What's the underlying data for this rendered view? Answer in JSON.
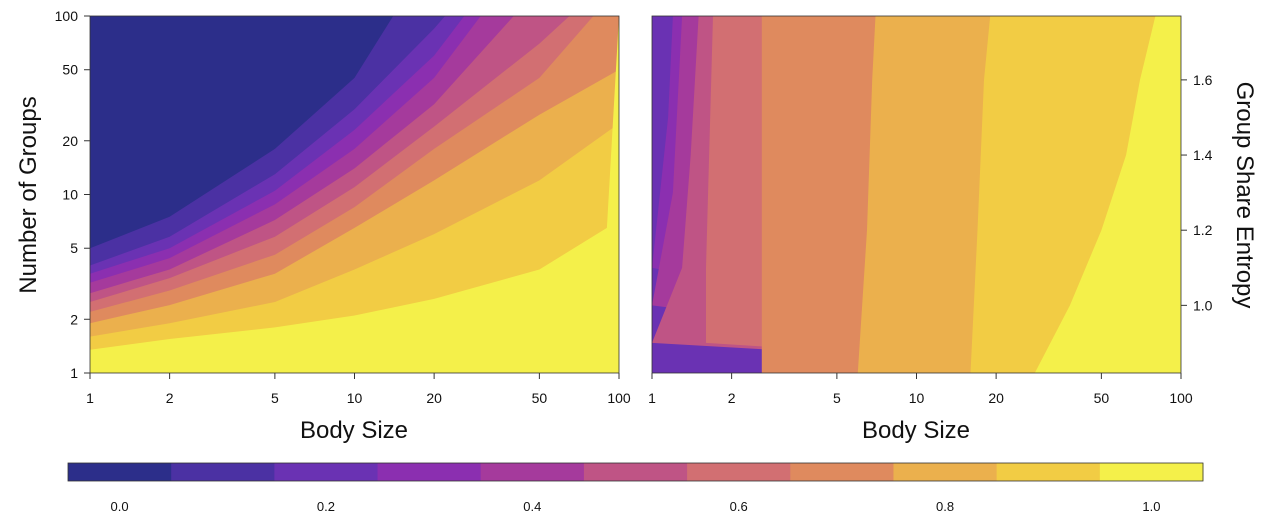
{
  "chart_data": [
    {
      "type": "heatmap",
      "title": "",
      "xlabel": "Body Size",
      "ylabel": "Number of Groups",
      "x_scale": "log",
      "y_scale": "log",
      "xlim": [
        1,
        100
      ],
      "ylim": [
        1,
        100
      ],
      "x_ticks": [
        1,
        2,
        5,
        10,
        20,
        50,
        100
      ],
      "y_ticks": [
        1,
        2,
        5,
        10,
        20,
        50,
        100
      ],
      "value_range": [
        0,
        1
      ],
      "contour_bands": [
        {
          "level": 1.0,
          "boundary": [
            [
              1,
              1.35
            ],
            [
              2,
              1.55
            ],
            [
              5,
              1.8
            ],
            [
              10,
              2.1
            ],
            [
              20,
              2.6
            ],
            [
              50,
              3.8
            ],
            [
              90,
              6.5
            ]
          ]
        },
        {
          "level": 0.9,
          "boundary": [
            [
              1,
              1.6
            ],
            [
              2,
              1.9
            ],
            [
              5,
              2.5
            ],
            [
              10,
              3.8
            ],
            [
              20,
              6.0
            ],
            [
              50,
              12
            ],
            [
              100,
              25
            ]
          ]
        },
        {
          "level": 0.8,
          "boundary": [
            [
              1,
              1.9
            ],
            [
              2,
              2.4
            ],
            [
              5,
              3.6
            ],
            [
              10,
              6.5
            ],
            [
              20,
              12
            ],
            [
              50,
              28
            ],
            [
              100,
              50
            ]
          ]
        },
        {
          "level": 0.7,
          "boundary": [
            [
              1,
              2.2
            ],
            [
              2,
              2.9
            ],
            [
              5,
              4.6
            ],
            [
              10,
              8.5
            ],
            [
              20,
              18
            ],
            [
              50,
              45
            ],
            [
              80,
              100
            ]
          ]
        },
        {
          "level": 0.6,
          "boundary": [
            [
              1,
              2.5
            ],
            [
              2,
              3.4
            ],
            [
              5,
              5.8
            ],
            [
              10,
              11
            ],
            [
              20,
              24
            ],
            [
              50,
              70
            ],
            [
              65,
              100
            ]
          ]
        },
        {
          "level": 0.5,
          "boundary": [
            [
              1,
              2.8
            ],
            [
              2,
              3.8
            ],
            [
              5,
              7.2
            ],
            [
              10,
              14
            ],
            [
              20,
              32
            ],
            [
              40,
              100
            ]
          ]
        },
        {
          "level": 0.4,
          "boundary": [
            [
              1,
              3.2
            ],
            [
              2,
              4.4
            ],
            [
              5,
              8.8
            ],
            [
              10,
              18
            ],
            [
              20,
              45
            ],
            [
              30,
              100
            ]
          ]
        },
        {
          "level": 0.3,
          "boundary": [
            [
              1,
              3.6
            ],
            [
              2,
              5.0
            ],
            [
              5,
              10.5
            ],
            [
              10,
              23
            ],
            [
              20,
              60
            ],
            [
              26,
              100
            ]
          ]
        },
        {
          "level": 0.2,
          "boundary": [
            [
              1,
              4.0
            ],
            [
              2,
              5.8
            ],
            [
              5,
              13
            ],
            [
              10,
              30
            ],
            [
              20,
              85
            ],
            [
              22,
              100
            ]
          ]
        },
        {
          "level": 0.1,
          "boundary": [
            [
              1,
              5.0
            ],
            [
              2,
              7.5
            ],
            [
              5,
              18
            ],
            [
              10,
              45
            ],
            [
              14,
              100
            ]
          ]
        }
      ]
    },
    {
      "type": "heatmap",
      "title": "",
      "xlabel": "Body Size",
      "ylabel": "Group Share Entropy",
      "x_scale": "log",
      "xlim": [
        1,
        100
      ],
      "ylim": [
        0.82,
        1.77
      ],
      "x_ticks": [
        1,
        2,
        5,
        10,
        20,
        50,
        100
      ],
      "y_ticks": [
        1.0,
        1.2,
        1.4,
        1.6
      ],
      "y_axis_side": "right",
      "value_range": [
        0,
        1
      ],
      "contour_bands": [
        {
          "level": 1.0,
          "boundary": [
            [
              28,
              0.82
            ],
            [
              38,
              1.0
            ],
            [
              50,
              1.2
            ],
            [
              62,
              1.4
            ],
            [
              70,
              1.6
            ],
            [
              80,
              1.77
            ]
          ]
        },
        {
          "level": 0.9,
          "boundary": [
            [
              16,
              0.82
            ],
            [
              17,
              1.2
            ],
            [
              18,
              1.6
            ],
            [
              19,
              1.77
            ]
          ]
        },
        {
          "level": 0.8,
          "boundary": [
            [
              6,
              0.82
            ],
            [
              6.5,
              1.2
            ],
            [
              6.8,
              1.6
            ],
            [
              7,
              1.77
            ]
          ]
        },
        {
          "level": 0.7,
          "boundary": [
            [
              2.6,
              0.82
            ],
            [
              2.6,
              1.77
            ]
          ]
        },
        {
          "level": 0.6,
          "boundary": [
            [
              1.6,
              0.9
            ],
            [
              1.6,
              1.1
            ],
            [
              1.7,
              1.77
            ]
          ]
        },
        {
          "level": 0.5,
          "boundary": [
            [
              1,
              0.9
            ],
            [
              1.3,
              1.1
            ],
            [
              1.4,
              1.4
            ],
            [
              1.5,
              1.77
            ]
          ]
        },
        {
          "level": 0.4,
          "boundary": [
            [
              1,
              1.0
            ],
            [
              1.2,
              1.3
            ],
            [
              1.3,
              1.77
            ]
          ]
        },
        {
          "level": 0.3,
          "boundary": [
            [
              1,
              1.1
            ],
            [
              1.15,
              1.5
            ],
            [
              1.2,
              1.77
            ]
          ]
        },
        {
          "level": 0.2,
          "boundary": [
            [
              1,
              1.5
            ],
            [
              1.1,
              1.77
            ]
          ]
        }
      ]
    }
  ],
  "colorbar": {
    "ticks": [
      {
        "label": "0.0",
        "value": 0.0
      },
      {
        "label": "0.2",
        "value": 0.2
      },
      {
        "label": "0.4",
        "value": 0.4
      },
      {
        "label": "0.6",
        "value": 0.6
      },
      {
        "label": "0.8",
        "value": 0.8
      },
      {
        "label": "1.0",
        "value": 1.0
      }
    ],
    "range": [
      -0.05,
      1.05
    ],
    "colors": [
      "#2c2e8a",
      "#4b31a3",
      "#6a32b3",
      "#8b2fb0",
      "#a53a9c",
      "#bf5485",
      "#d26f72",
      "#df8a5e",
      "#ebb04d",
      "#f2cc44",
      "#f4f04a"
    ]
  }
}
